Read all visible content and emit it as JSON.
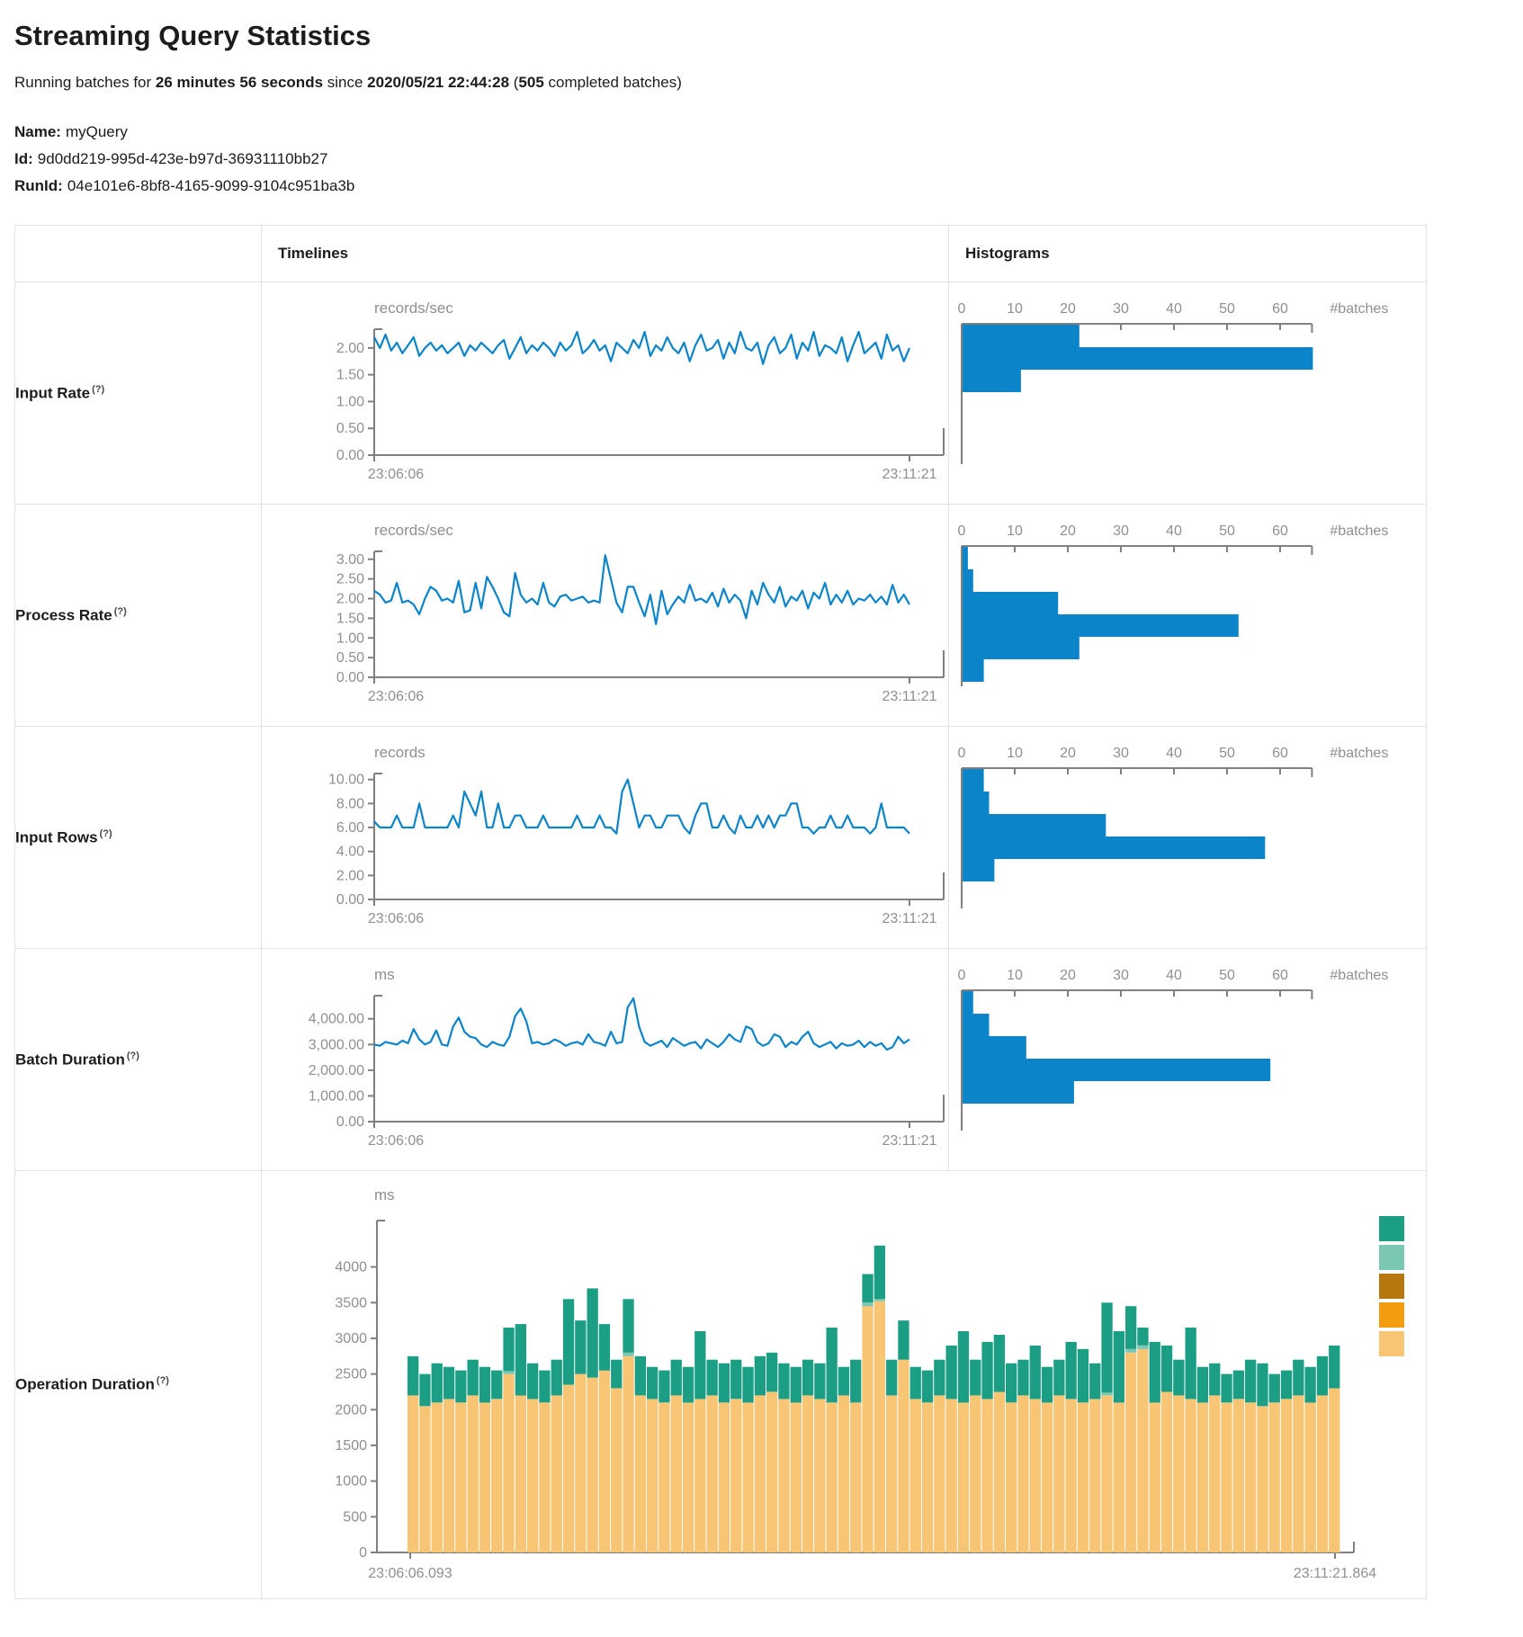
{
  "page": {
    "title": "Streaming Query Statistics",
    "subtitle": {
      "prefix": "Running batches for ",
      "duration": "26 minutes 56 seconds",
      "since": " since ",
      "start_time": "2020/05/21 22:44:28",
      "paren_open": " (",
      "completed_batches": "505",
      "suffix": " completed batches)"
    },
    "meta": {
      "name_label": "Name:",
      "name_value": "myQuery",
      "id_label": "Id:",
      "id_value": "9d0dd219-995d-423e-b97d-36931110bb27",
      "runid_label": "RunId:",
      "runid_value": "04e101e6-8bf8-4165-9099-9104c951ba3b"
    }
  },
  "table": {
    "help_marker": "(?)",
    "headers": {
      "timelines": "Timelines",
      "histograms": "Histograms"
    },
    "rows": [
      {
        "label": "Input Rate"
      },
      {
        "label": "Process Rate"
      },
      {
        "label": "Input Rows"
      },
      {
        "label": "Batch Duration"
      },
      {
        "label": "Operation Duration"
      }
    ]
  },
  "colors": {
    "line": "#0b84c9",
    "histogram_bar": "#0b84c9",
    "axis": "#808080",
    "tick_text": "#8f8f8f",
    "table_border": "#e2e2e2"
  },
  "chart_data": [
    {
      "id": "input-rate-timeline",
      "type": "line",
      "title": "records/sec",
      "x_start": "23:06:06",
      "x_end": "23:11:21",
      "ytick_labels": [
        "2.00",
        "1.50",
        "1.00",
        "0.50",
        "0.00"
      ],
      "ytick_values": [
        2,
        1.5,
        1,
        0.5,
        0
      ],
      "ymax": 2.35,
      "values": [
        2.2,
        2.0,
        2.25,
        1.95,
        2.1,
        1.9,
        2.05,
        2.2,
        1.85,
        2.0,
        2.1,
        1.95,
        2.05,
        1.9,
        2.0,
        2.1,
        1.85,
        2.05,
        1.95,
        2.1,
        2.0,
        1.9,
        2.05,
        2.15,
        1.8,
        2.0,
        2.2,
        1.9,
        2.05,
        1.95,
        2.1,
        2.0,
        1.85,
        2.1,
        1.95,
        2.05,
        2.3,
        1.9,
        2.0,
        2.15,
        1.95,
        2.05,
        1.75,
        2.1,
        2.0,
        1.9,
        2.15,
        2.0,
        2.3,
        1.85,
        2.05,
        1.95,
        2.2,
        2.0,
        1.9,
        2.1,
        1.75,
        2.05,
        2.25,
        1.95,
        2.0,
        2.15,
        1.8,
        2.1,
        1.9,
        2.3,
        2.0,
        1.95,
        2.1,
        1.7,
        2.05,
        2.2,
        1.9,
        2.0,
        2.25,
        1.8,
        2.1,
        1.95,
        2.3,
        1.85,
        2.05,
        2.0,
        1.9,
        2.2,
        1.75,
        2.05,
        2.3,
        1.9,
        2.0,
        2.1,
        1.8,
        2.25,
        1.95,
        2.05,
        1.75,
        2.0
      ]
    },
    {
      "id": "input-rate-histogram",
      "type": "bar",
      "orientation": "horizontal",
      "axis_label": "#batches",
      "xtick_labels": [
        "0",
        "10",
        "20",
        "30",
        "40",
        "50",
        "60"
      ],
      "xtick_values": [
        0,
        10,
        20,
        30,
        40,
        50,
        60
      ],
      "xmax": 66,
      "values": [
        22,
        66,
        11
      ]
    },
    {
      "id": "process-rate-timeline",
      "type": "line",
      "title": "records/sec",
      "x_start": "23:06:06",
      "x_end": "23:11:21",
      "ytick_labels": [
        "3.00",
        "2.50",
        "2.00",
        "1.50",
        "1.00",
        "0.50",
        "0.00"
      ],
      "ytick_values": [
        3,
        2.5,
        2,
        1.5,
        1,
        0.5,
        0
      ],
      "ymax": 3.2,
      "values": [
        2.2,
        2.1,
        1.9,
        1.95,
        2.4,
        1.9,
        1.95,
        1.85,
        1.6,
        2.0,
        2.3,
        2.2,
        1.95,
        2.0,
        1.9,
        2.45,
        1.65,
        1.7,
        2.4,
        1.75,
        2.55,
        2.3,
        2.0,
        1.65,
        1.55,
        2.65,
        2.1,
        1.9,
        2.0,
        1.85,
        2.4,
        1.9,
        1.8,
        2.05,
        2.1,
        1.95,
        2.0,
        2.05,
        1.9,
        1.95,
        1.9,
        3.1,
        2.5,
        1.9,
        1.65,
        2.3,
        2.3,
        1.9,
        1.55,
        2.1,
        1.35,
        2.2,
        1.6,
        1.85,
        2.05,
        1.9,
        2.35,
        1.95,
        2.0,
        1.9,
        2.15,
        1.8,
        2.25,
        1.9,
        2.1,
        1.95,
        1.5,
        2.2,
        1.85,
        2.4,
        2.1,
        1.9,
        2.3,
        1.8,
        2.05,
        1.95,
        2.2,
        1.75,
        2.15,
        2.0,
        2.4,
        1.85,
        2.1,
        1.9,
        2.2,
        1.85,
        2.0,
        1.95,
        2.1,
        1.9,
        2.05,
        1.85,
        2.35,
        1.9,
        2.1,
        1.85
      ]
    },
    {
      "id": "process-rate-histogram",
      "type": "bar",
      "orientation": "horizontal",
      "axis_label": "#batches",
      "xtick_labels": [
        "0",
        "10",
        "20",
        "30",
        "40",
        "50",
        "60"
      ],
      "xtick_values": [
        0,
        10,
        20,
        30,
        40,
        50,
        60
      ],
      "xmax": 66,
      "values": [
        1,
        2,
        18,
        52,
        22,
        4
      ]
    },
    {
      "id": "input-rows-timeline",
      "type": "line",
      "title": "records",
      "x_start": "23:06:06",
      "x_end": "23:11:21",
      "ytick_labels": [
        "10.00",
        "8.00",
        "6.00",
        "4.00",
        "2.00",
        "0.00"
      ],
      "ytick_values": [
        10,
        8,
        6,
        4,
        2,
        0
      ],
      "ymax": 10.5,
      "values": [
        6.5,
        6,
        6,
        6,
        7,
        6,
        6,
        6,
        8,
        6,
        6,
        6,
        6,
        6,
        7,
        6,
        9,
        8,
        7,
        9,
        6,
        6,
        8,
        6,
        6,
        7,
        7,
        6,
        6,
        6,
        7,
        6,
        6,
        6,
        6,
        6,
        7,
        6,
        6,
        6,
        7,
        6,
        6,
        5.5,
        9,
        10,
        8,
        6,
        7,
        7,
        6,
        6,
        7,
        7,
        7,
        6,
        5.5,
        7,
        8,
        8,
        6,
        6,
        7,
        6,
        5.5,
        7,
        6,
        6,
        7,
        6,
        7,
        6,
        7,
        7,
        8,
        8,
        6,
        6,
        5.5,
        6,
        6,
        7,
        6,
        6,
        7,
        6,
        6,
        6,
        5.5,
        6,
        8,
        6,
        6,
        6,
        6,
        5.5
      ]
    },
    {
      "id": "input-rows-histogram",
      "type": "bar",
      "orientation": "horizontal",
      "axis_label": "#batches",
      "xtick_labels": [
        "0",
        "10",
        "20",
        "30",
        "40",
        "50",
        "60"
      ],
      "xtick_values": [
        0,
        10,
        20,
        30,
        40,
        50,
        60
      ],
      "xmax": 66,
      "values": [
        4,
        5,
        27,
        57,
        6
      ]
    },
    {
      "id": "batch-duration-timeline",
      "type": "line",
      "title": "ms",
      "x_start": "23:06:06",
      "x_end": "23:11:21",
      "ytick_labels": [
        "4,000.00",
        "3,000.00",
        "2,000.00",
        "1,000.00",
        "0.00"
      ],
      "ytick_values": [
        4000,
        3000,
        2000,
        1000,
        0
      ],
      "ymax": 4900,
      "values": [
        3000,
        2950,
        3100,
        3050,
        3000,
        3150,
        3050,
        3600,
        3200,
        3000,
        3100,
        3550,
        3000,
        2950,
        3700,
        4050,
        3500,
        3300,
        3250,
        3000,
        2900,
        3100,
        3000,
        2950,
        3300,
        4100,
        4400,
        3900,
        3050,
        3100,
        3000,
        3050,
        3200,
        3100,
        2950,
        3050,
        3100,
        3000,
        3400,
        3100,
        3050,
        2950,
        3500,
        3050,
        3100,
        4450,
        4800,
        3700,
        3100,
        2950,
        3050,
        3150,
        2900,
        3250,
        3100,
        2950,
        3050,
        3100,
        2850,
        3200,
        3050,
        2900,
        3100,
        3400,
        3200,
        3100,
        3700,
        3600,
        3100,
        2950,
        3050,
        3400,
        3300,
        2900,
        3100,
        3000,
        3300,
        3500,
        3050,
        2900,
        3000,
        3100,
        2850,
        3050,
        2950,
        3000,
        3150,
        2900,
        3100,
        2950,
        3050,
        2800,
        2900,
        3300,
        3050,
        3200
      ]
    },
    {
      "id": "batch-duration-histogram",
      "type": "bar",
      "orientation": "horizontal",
      "axis_label": "#batches",
      "xtick_labels": [
        "0",
        "10",
        "20",
        "30",
        "40",
        "50",
        "60"
      ],
      "xtick_values": [
        0,
        10,
        20,
        30,
        40,
        50,
        60
      ],
      "xmax": 66,
      "values": [
        2,
        5,
        12,
        58,
        21
      ]
    },
    {
      "id": "operation-duration",
      "type": "stacked-bar",
      "title": "ms",
      "x_start": "23:06:06.093",
      "x_end": "23:11:21.864",
      "ytick_labels": [
        "4000",
        "3500",
        "3000",
        "2500",
        "2000",
        "1500",
        "1000",
        "500",
        "0"
      ],
      "ytick_values": [
        4000,
        3500,
        3000,
        2500,
        2000,
        1500,
        1000,
        500,
        0
      ],
      "ymax": 4650,
      "legend_colors": [
        "#1b9e84",
        "#7ac7b3",
        "#b5770e",
        "#f39c0f",
        "#f7c573"
      ],
      "series": [
        {
          "name": "bottom-tan",
          "color": "#f7c573",
          "values": [
            2200,
            2050,
            2100,
            2150,
            2100,
            2200,
            2100,
            2150,
            2500,
            2200,
            2150,
            2100,
            2200,
            2350,
            2500,
            2450,
            2550,
            2300,
            2750,
            2200,
            2150,
            2100,
            2200,
            2100,
            2150,
            2200,
            2100,
            2150,
            2100,
            2200,
            2250,
            2150,
            2100,
            2200,
            2150,
            2100,
            2200,
            2100,
            3450,
            3520,
            2200,
            2700,
            2150,
            2100,
            2200,
            2150,
            2100,
            2200,
            2150,
            2250,
            2100,
            2200,
            2150,
            2100,
            2200,
            2150,
            2100,
            2150,
            2200,
            2100,
            2800,
            2850,
            2100,
            2250,
            2200,
            2150,
            2100,
            2200,
            2100,
            2150,
            2100,
            2050,
            2100,
            2150,
            2200,
            2100,
            2200,
            2300
          ]
        },
        {
          "name": "middle-light-teal",
          "color": "#7ac7b3",
          "values": [
            0,
            0,
            0,
            0,
            0,
            0,
            0,
            0,
            40,
            0,
            0,
            0,
            0,
            0,
            0,
            0,
            0,
            0,
            50,
            0,
            0,
            0,
            0,
            0,
            0,
            0,
            0,
            0,
            0,
            0,
            0,
            0,
            0,
            0,
            0,
            0,
            0,
            0,
            50,
            30,
            0,
            0,
            0,
            0,
            0,
            0,
            0,
            0,
            0,
            0,
            0,
            0,
            0,
            0,
            0,
            0,
            0,
            0,
            40,
            0,
            50,
            50,
            0,
            0,
            0,
            0,
            0,
            0,
            0,
            0,
            0,
            0,
            0,
            0,
            0,
            0,
            0,
            0
          ]
        },
        {
          "name": "top-teal",
          "color": "#1b9e84",
          "values": [
            550,
            450,
            550,
            450,
            450,
            500,
            500,
            400,
            610,
            1000,
            500,
            450,
            500,
            1200,
            750,
            1250,
            650,
            400,
            750,
            550,
            450,
            450,
            500,
            500,
            950,
            500,
            550,
            550,
            500,
            550,
            550,
            500,
            500,
            500,
            500,
            1050,
            400,
            600,
            400,
            750,
            500,
            550,
            450,
            450,
            500,
            750,
            1000,
            500,
            800,
            800,
            550,
            500,
            750,
            500,
            500,
            800,
            750,
            500,
            1260,
            1000,
            600,
            250,
            850,
            650,
            500,
            1000,
            500,
            450,
            400,
            400,
            600,
            600,
            400,
            400,
            500,
            500,
            550,
            600
          ]
        }
      ]
    }
  ]
}
